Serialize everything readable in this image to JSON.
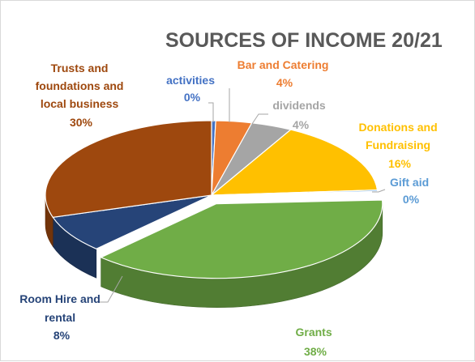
{
  "chart_data": {
    "type": "pie",
    "title": "SOURCES OF INCOME 20/21",
    "slices": [
      {
        "label": "activities",
        "display": "0%",
        "value": 0.4,
        "color": "#4472C4"
      },
      {
        "label": "Bar and Catering",
        "display": "4%",
        "value": 3.5,
        "color": "#ED7D31"
      },
      {
        "label": "dividends",
        "display": "4%",
        "value": 4.0,
        "color": "#A5A5A5"
      },
      {
        "label": "Donations and Fundraising",
        "display": "16%",
        "value": 16.0,
        "color": "#FFC000"
      },
      {
        "label": "Gift aid",
        "display": "0%",
        "value": 0.3,
        "color": "#5B9BD5"
      },
      {
        "label": "Grants",
        "display": "38%",
        "value": 38.0,
        "color": "#70AD47"
      },
      {
        "label": "Room Hire and rental",
        "display": "8%",
        "value": 8.0,
        "color": "#264478"
      },
      {
        "label": "Trusts and foundations and local business",
        "display": "30%",
        "value": 29.8,
        "color": "#9E480E"
      }
    ],
    "legend": "none",
    "style": "3d-pie"
  },
  "labels": {
    "activities": {
      "lines": [
        "activities"
      ],
      "pct": "0%"
    },
    "bar": {
      "lines": [
        "Bar and Catering"
      ],
      "pct": "4%"
    },
    "dividends": {
      "lines": [
        "dividends"
      ],
      "pct": "4%"
    },
    "donations": {
      "lines": [
        "Donations and",
        "Fundraising"
      ],
      "pct": "16%"
    },
    "giftaid": {
      "lines": [
        "Gift aid"
      ],
      "pct": "0%"
    },
    "grants": {
      "lines": [
        "Grants"
      ],
      "pct": "38%"
    },
    "room": {
      "lines": [
        "Room Hire and",
        "rental"
      ],
      "pct": "8%"
    },
    "trusts": {
      "lines": [
        "Trusts and",
        "foundations and",
        "local business"
      ],
      "pct": "30%"
    }
  }
}
